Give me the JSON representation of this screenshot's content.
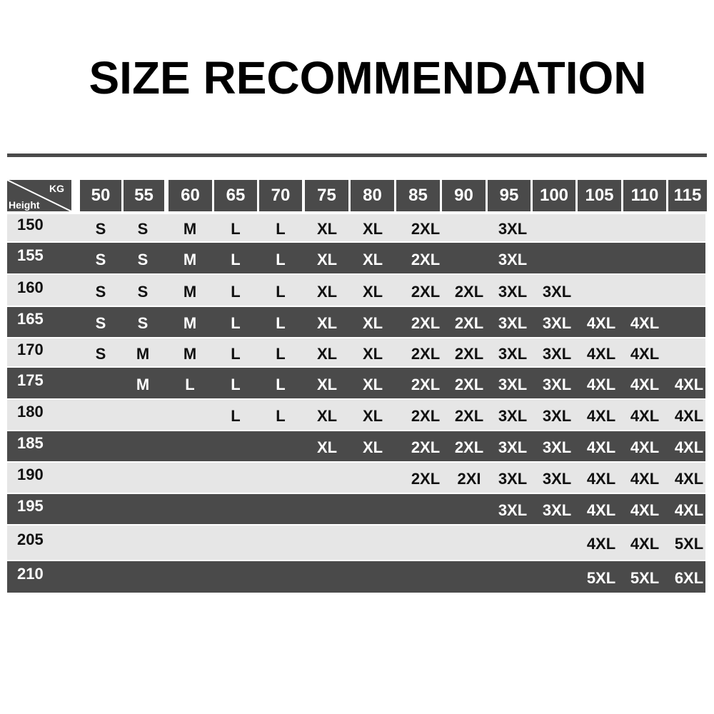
{
  "title": "SIZE RECOMMENDATION",
  "colors": {
    "dark": "#4a4a4a",
    "light": "#e6e6e6"
  },
  "table": {
    "corner_top": "KG",
    "corner_bottom": "Height",
    "weights": [
      "50",
      "55",
      "60",
      "65",
      "70",
      "75",
      "80",
      "85",
      "90",
      "95",
      "100",
      "105",
      "110",
      "115"
    ],
    "rows": [
      {
        "height": "150",
        "sizes": [
          "S",
          "S",
          "M",
          "L",
          "L",
          "XL",
          "XL",
          "2XL",
          "",
          "3XL",
          "",
          "",
          "",
          ""
        ]
      },
      {
        "height": "155",
        "sizes": [
          "S",
          "S",
          "M",
          "L",
          "L",
          "XL",
          "XL",
          "2XL",
          "",
          "3XL",
          "",
          "",
          "",
          ""
        ]
      },
      {
        "height": "160",
        "sizes": [
          "S",
          "S",
          "M",
          "L",
          "L",
          "XL",
          "XL",
          "2XL",
          "2XL",
          "3XL",
          "3XL",
          "",
          "",
          ""
        ]
      },
      {
        "height": "165",
        "sizes": [
          "S",
          "S",
          "M",
          "L",
          "L",
          "XL",
          "XL",
          "2XL",
          "2XL",
          "3XL",
          "3XL",
          "4XL",
          "4XL",
          ""
        ]
      },
      {
        "height": "170",
        "sizes": [
          "S",
          "M",
          "M",
          "L",
          "L",
          "XL",
          "XL",
          "2XL",
          "2XL",
          "3XL",
          "3XL",
          "4XL",
          "4XL",
          ""
        ]
      },
      {
        "height": "175",
        "sizes": [
          "",
          "M",
          "L",
          "L",
          "L",
          "XL",
          "XL",
          "2XL",
          "2XL",
          "3XL",
          "3XL",
          "4XL",
          "4XL",
          "4XL"
        ]
      },
      {
        "height": "180",
        "sizes": [
          "",
          "",
          "",
          "L",
          "L",
          "XL",
          "XL",
          "2XL",
          "2XL",
          "3XL",
          "3XL",
          "4XL",
          "4XL",
          "4XL"
        ]
      },
      {
        "height": "185",
        "sizes": [
          "",
          "",
          "",
          "",
          "",
          "XL",
          "XL",
          "2XL",
          "2XL",
          "3XL",
          "3XL",
          "4XL",
          "4XL",
          "4XL"
        ]
      },
      {
        "height": "190",
        "sizes": [
          "",
          "",
          "",
          "",
          "",
          "",
          "",
          "2XL",
          "2XI",
          "3XL",
          "3XL",
          "4XL",
          "4XL",
          "4XL"
        ]
      },
      {
        "height": "195",
        "sizes": [
          "",
          "",
          "",
          "",
          "",
          "",
          "",
          "",
          "",
          "3XL",
          "3XL",
          "4XL",
          "4XL",
          "4XL"
        ]
      },
      {
        "height": "205",
        "sizes": [
          "",
          "",
          "",
          "",
          "",
          "",
          "",
          "",
          "",
          "",
          "",
          "4XL",
          "4XL",
          "5XL"
        ]
      },
      {
        "height": "210",
        "sizes": [
          "",
          "",
          "",
          "",
          "",
          "",
          "",
          "",
          "",
          "",
          "",
          "5XL",
          "5XL",
          "6XL"
        ]
      }
    ]
  }
}
